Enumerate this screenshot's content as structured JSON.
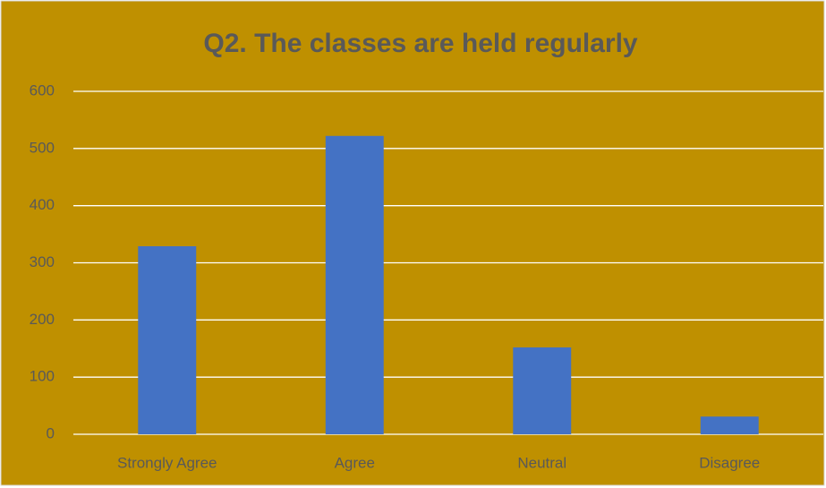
{
  "chart_data": {
    "type": "bar",
    "title": "Q2. The classes are held regularly",
    "categories": [
      "Strongly Agree",
      "Agree",
      "Neutral",
      "Disagree"
    ],
    "values": [
      329,
      522,
      152,
      31
    ],
    "color": "#4472c4",
    "background": "#bf9000",
    "ylim": [
      0,
      600
    ],
    "yticks": [
      0,
      100,
      200,
      300,
      400,
      500,
      600
    ],
    "grid": true
  }
}
